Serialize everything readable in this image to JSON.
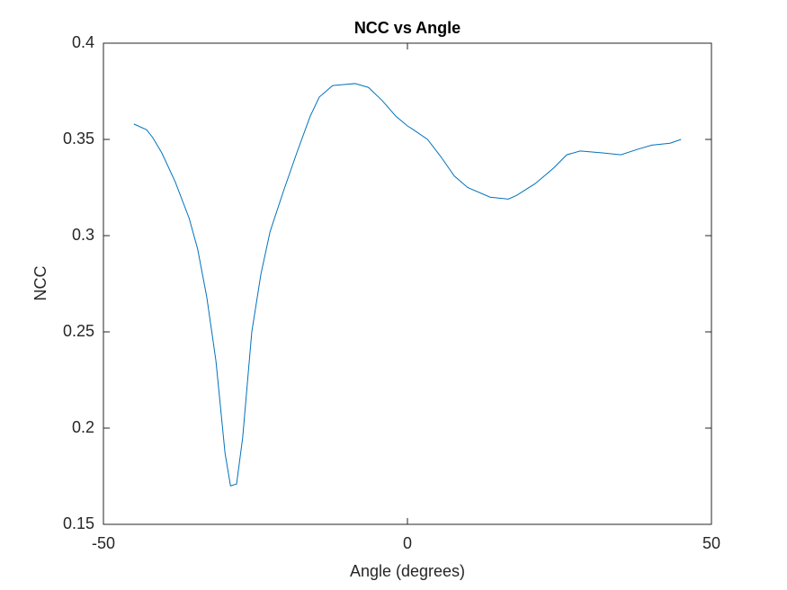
{
  "chart_data": {
    "type": "line",
    "title": "NCC vs Angle",
    "x_label": "Angle (degrees)",
    "y_label": "NCC",
    "x": [
      -45,
      -42.9,
      -41.9,
      -40.4,
      -38.2,
      -35.9,
      -34.5,
      -33,
      -31.5,
      -30,
      -29.1,
      -28.1,
      -27.1,
      -25.6,
      -24.1,
      -22.6,
      -20.4,
      -18.2,
      -16,
      -14.5,
      -12.3,
      -8.6,
      -6.4,
      -4.1,
      -1.9,
      0,
      1,
      3.3,
      5.5,
      7.7,
      9.9,
      13.6,
      16.6,
      18,
      21,
      24,
      26.2,
      28.4,
      32.1,
      35.1,
      38,
      40.2,
      43.2,
      45
    ],
    "series": [
      {
        "color": "#0072bd",
        "values": [
          0.358,
          0.355,
          0.351,
          0.343,
          0.328,
          0.309,
          0.293,
          0.268,
          0.235,
          0.187,
          0.17,
          0.171,
          0.195,
          0.25,
          0.28,
          0.302,
          0.323,
          0.343,
          0.362,
          0.372,
          0.378,
          0.379,
          0.377,
          0.37,
          0.362,
          0.357,
          0.355,
          0.35,
          0.341,
          0.331,
          0.325,
          0.32,
          0.319,
          0.321,
          0.327,
          0.335,
          0.342,
          0.344,
          0.343,
          0.342,
          0.345,
          0.347,
          0.348,
          0.35
        ]
      }
    ],
    "xlim": [
      -50,
      50
    ],
    "xticks": [
      -50,
      0,
      50
    ],
    "ylim": [
      0.15,
      0.4
    ],
    "yticks": [
      0.15,
      0.2,
      0.25,
      0.3,
      0.35,
      0.4
    ],
    "grid": false
  }
}
